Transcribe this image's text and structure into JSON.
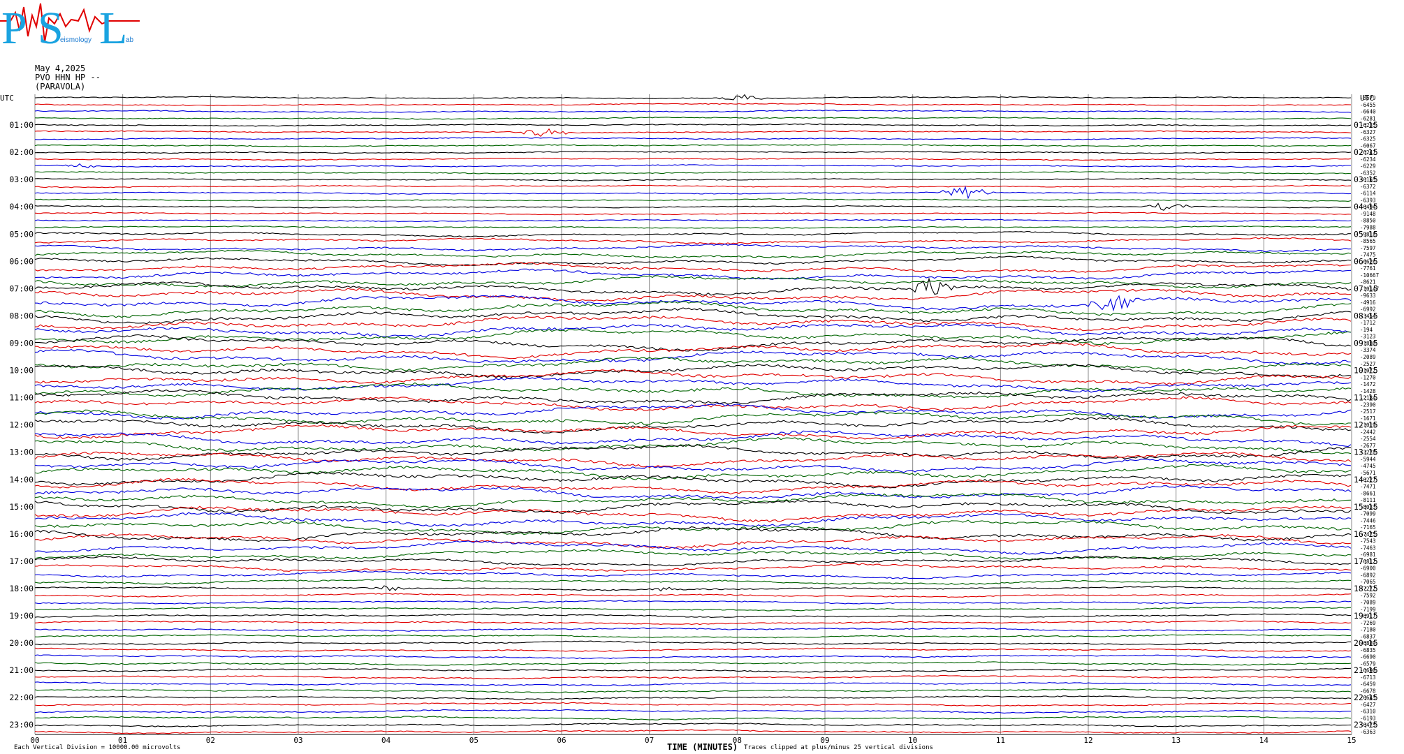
{
  "logo": {
    "letters": [
      "P",
      "S",
      "L"
    ],
    "caption": "eismology",
    "caption2": "ab"
  },
  "header": {
    "date": "May 4,2025",
    "station": "PVO HHN HP --",
    "location": "(PARAVOLA)"
  },
  "footer": {
    "scale_note": "Each Vertical Division = 10000.00 microvolts",
    "xtitle": "TIME (MINUTES)",
    "clip_note": "Traces clipped at plus/minus 25 vertical divisions"
  },
  "colors": {
    "trace_cycle": [
      "#000000",
      "#e00000",
      "#0000e0",
      "#006400"
    ],
    "grid": "#888888"
  },
  "chart_data": {
    "type": "line",
    "xlabel": "TIME (MINUTES)",
    "x_tick_labels": [
      "00",
      "01",
      "02",
      "03",
      "04",
      "05",
      "06",
      "07",
      "08",
      "09",
      "10",
      "11",
      "12",
      "13",
      "14",
      "15"
    ],
    "xlim": [
      0,
      15
    ],
    "left_axis_title": "UTC",
    "right_axis_title": "UTC",
    "left_hour_labels": [
      "01:00",
      "02:00",
      "03:00",
      "04:00",
      "05:00",
      "06:00",
      "07:00",
      "08:00",
      "09:00",
      "10:00",
      "11:00",
      "12:00",
      "13:00",
      "14:00",
      "15:00",
      "16:00",
      "17:00",
      "18:00",
      "19:00",
      "20:00",
      "21:00",
      "22:00",
      "23:00"
    ],
    "right_hour_labels": [
      "01:15",
      "02:15",
      "03:15",
      "04:15",
      "05:15",
      "06:15",
      "07:15",
      "08:15",
      "09:15",
      "10:15",
      "11:15",
      "12:15",
      "13:15",
      "14:15",
      "15:15",
      "16:15",
      "17:15",
      "18:15",
      "19:15",
      "20:15",
      "21:15",
      "22:15",
      "23:15"
    ],
    "trace_offsets": [
      "-8679",
      "-6455",
      "-6640",
      "-6281",
      "-6235",
      "-6327",
      "-6325",
      "-6067",
      "-6247",
      "-6234",
      "-6229",
      "-6352",
      "-6165",
      "-6372",
      "-6114",
      "-6393",
      "-6494",
      "-9148",
      "-8850",
      "-7988",
      "-9818",
      "-8565",
      "-7597",
      "-7475",
      "-6626",
      "-7761",
      "-10667",
      "-8621",
      "-10147",
      "-9633",
      "-4916",
      "-6992",
      "-3454",
      "-1712",
      "-194",
      "-3123",
      "-1880",
      "-3374",
      "-2089",
      "-2527",
      "-1072",
      "-1270",
      "-1472",
      "-1428",
      "-2184",
      "-2390",
      "-2517",
      "-1671",
      "-1019",
      "-2442",
      "-2554",
      "-2677",
      "-3278",
      "-5944",
      "-4745",
      "-5671",
      "-6227",
      "-7471",
      "-8661",
      "-8111",
      "-8033",
      "-7099",
      "-7446",
      "-7165",
      "-7475",
      "-7543",
      "-7463",
      "-6981",
      "-6812",
      "-6900",
      "-6892",
      "-7065",
      "-7272",
      "-7592",
      "-7089",
      "-7199",
      "-6917",
      "-7269",
      "-7180",
      "-6837",
      "-6889",
      "-6835",
      "-6690",
      "-6579",
      "-6690",
      "-6713",
      "-6459",
      "-6678",
      "-6645",
      "-6427",
      "-6310",
      "-6193",
      "-6475",
      "-6363"
    ],
    "traces_per_hour": 4,
    "minutes_per_trace": 15,
    "grid": true
  }
}
